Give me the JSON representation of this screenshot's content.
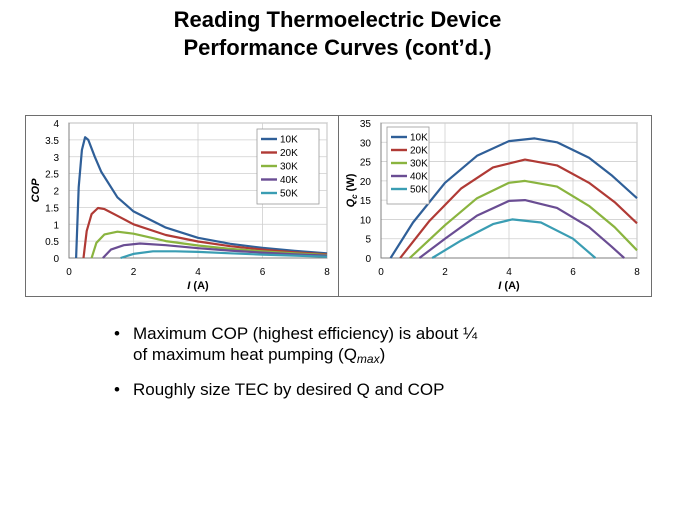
{
  "slide": {
    "title_line1": "Reading Thermoelectric Device",
    "title_line2": "Performance Curves (cont’d.)"
  },
  "bullets": [
    {
      "marker": "•",
      "text": "Maximum  COP (highest efficiency) is about ¼",
      "text2": "of maximum  heat pumping  (Q",
      "sub": "max",
      "tail": ")"
    },
    {
      "marker": "•",
      "text": "Roughly size TEC by desired Q and COP"
    }
  ],
  "chart_data": [
    {
      "type": "line",
      "xlabel": "I (A)",
      "ylabel": "COP",
      "xlim": [
        0,
        8
      ],
      "ylim": [
        0,
        4
      ],
      "xticks": [
        "0",
        "2",
        "4",
        "6",
        "8"
      ],
      "yticks": [
        "0",
        "0.5",
        "1",
        "1.5",
        "2",
        "2.5",
        "3",
        "3.5",
        "4"
      ],
      "grid": true,
      "legend_position": "top-right",
      "series": [
        {
          "name": "10K",
          "color": "#2f5f98",
          "points": [
            [
              0.22,
              0
            ],
            [
              0.3,
              2.1
            ],
            [
              0.4,
              3.2
            ],
            [
              0.5,
              3.58
            ],
            [
              0.6,
              3.5
            ],
            [
              0.8,
              3.0
            ],
            [
              1.0,
              2.55
            ],
            [
              1.5,
              1.8
            ],
            [
              2.0,
              1.38
            ],
            [
              3.0,
              0.9
            ],
            [
              4.0,
              0.6
            ],
            [
              5.0,
              0.42
            ],
            [
              6.0,
              0.3
            ],
            [
              7.0,
              0.21
            ],
            [
              8.0,
              0.14
            ]
          ]
        },
        {
          "name": "20K",
          "color": "#b03a35",
          "points": [
            [
              0.45,
              0
            ],
            [
              0.55,
              0.8
            ],
            [
              0.7,
              1.3
            ],
            [
              0.9,
              1.48
            ],
            [
              1.1,
              1.45
            ],
            [
              1.5,
              1.25
            ],
            [
              2.0,
              1.0
            ],
            [
              3.0,
              0.68
            ],
            [
              4.0,
              0.49
            ],
            [
              5.0,
              0.35
            ],
            [
              6.0,
              0.25
            ],
            [
              7.0,
              0.17
            ],
            [
              8.0,
              0.11
            ]
          ]
        },
        {
          "name": "30K",
          "color": "#8ab43f",
          "points": [
            [
              0.7,
              0
            ],
            [
              0.85,
              0.45
            ],
            [
              1.1,
              0.7
            ],
            [
              1.5,
              0.78
            ],
            [
              2.0,
              0.72
            ],
            [
              3.0,
              0.5
            ],
            [
              4.0,
              0.37
            ],
            [
              5.0,
              0.27
            ],
            [
              6.0,
              0.2
            ],
            [
              7.0,
              0.14
            ],
            [
              8.0,
              0.09
            ]
          ]
        },
        {
          "name": "40K",
          "color": "#6a4d93",
          "points": [
            [
              1.05,
              0
            ],
            [
              1.3,
              0.25
            ],
            [
              1.7,
              0.38
            ],
            [
              2.2,
              0.43
            ],
            [
              3.0,
              0.38
            ],
            [
              4.0,
              0.29
            ],
            [
              5.0,
              0.22
            ],
            [
              6.0,
              0.16
            ],
            [
              7.0,
              0.11
            ],
            [
              8.0,
              0.07
            ]
          ]
        },
        {
          "name": "50K",
          "color": "#3a9db3",
          "points": [
            [
              1.6,
              0
            ],
            [
              2.0,
              0.12
            ],
            [
              2.6,
              0.2
            ],
            [
              3.3,
              0.2
            ],
            [
              4.0,
              0.18
            ],
            [
              5.0,
              0.14
            ],
            [
              6.0,
              0.1
            ],
            [
              7.0,
              0.07
            ],
            [
              8.0,
              0.04
            ]
          ]
        }
      ]
    },
    {
      "type": "line",
      "xlabel": "I (A)",
      "ylabel": "Qc (W)",
      "xlim": [
        0,
        8
      ],
      "ylim": [
        0,
        35
      ],
      "xticks": [
        "0",
        "2",
        "4",
        "6",
        "8"
      ],
      "yticks": [
        "0",
        "5",
        "10",
        "15",
        "20",
        "25",
        "30",
        "35"
      ],
      "grid": true,
      "legend_position": "top-left",
      "series": [
        {
          "name": "10K",
          "color": "#2f5f98",
          "points": [
            [
              0.3,
              0
            ],
            [
              1,
              9.2
            ],
            [
              2,
              19.5
            ],
            [
              3,
              26.5
            ],
            [
              4,
              30.3
            ],
            [
              4.8,
              31
            ],
            [
              5.5,
              30
            ],
            [
              6.5,
              26
            ],
            [
              7.2,
              21.5
            ],
            [
              8,
              15.5
            ]
          ]
        },
        {
          "name": "20K",
          "color": "#b03a35",
          "points": [
            [
              0.6,
              0
            ],
            [
              1.5,
              9.5
            ],
            [
              2.5,
              18
            ],
            [
              3.5,
              23.5
            ],
            [
              4.5,
              25.5
            ],
            [
              5.5,
              24
            ],
            [
              6.5,
              19.5
            ],
            [
              7.3,
              14.5
            ],
            [
              8,
              9
            ]
          ]
        },
        {
          "name": "30K",
          "color": "#8ab43f",
          "points": [
            [
              0.9,
              0
            ],
            [
              2,
              8.5
            ],
            [
              3,
              15.5
            ],
            [
              4,
              19.5
            ],
            [
              4.5,
              20
            ],
            [
              5.5,
              18.5
            ],
            [
              6.5,
              13.5
            ],
            [
              7.3,
              8
            ],
            [
              8,
              2
            ]
          ]
        },
        {
          "name": "40K",
          "color": "#6a4d93",
          "points": [
            [
              1.2,
              0
            ],
            [
              2,
              5
            ],
            [
              3,
              11
            ],
            [
              4,
              14.8
            ],
            [
              4.5,
              15
            ],
            [
              5.5,
              13
            ],
            [
              6.5,
              8
            ],
            [
              7.2,
              3
            ],
            [
              7.6,
              0
            ]
          ]
        },
        {
          "name": "50K",
          "color": "#3a9db3",
          "points": [
            [
              1.6,
              0
            ],
            [
              2.5,
              4.5
            ],
            [
              3.5,
              8.8
            ],
            [
              4.1,
              10
            ],
            [
              5,
              9.2
            ],
            [
              6,
              5
            ],
            [
              6.7,
              0
            ]
          ]
        }
      ]
    }
  ]
}
